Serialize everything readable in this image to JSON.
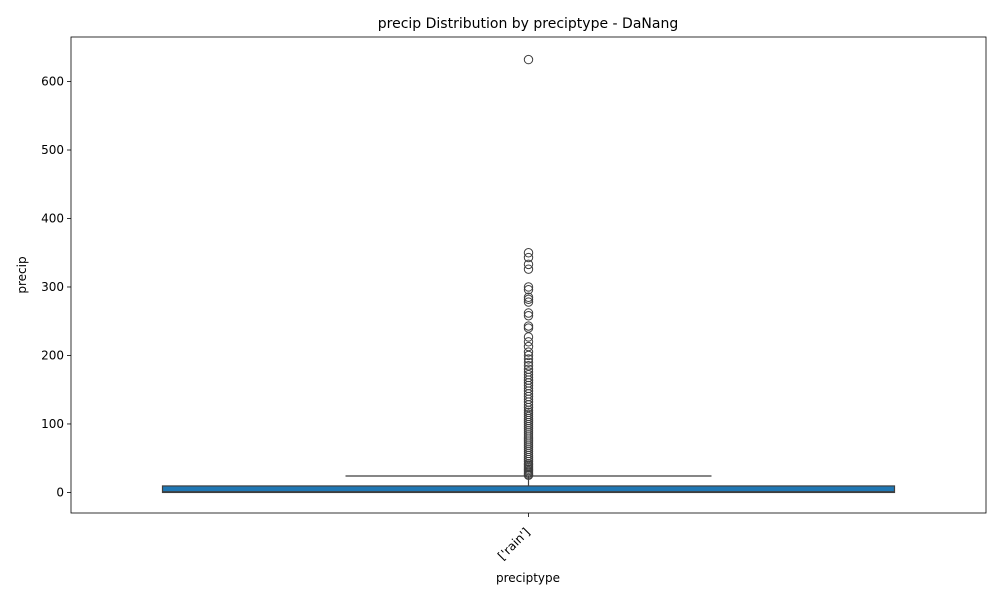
{
  "chart_data": {
    "type": "box",
    "title": "precip Distribution by preciptype - DaNang",
    "xlabel": "preciptype",
    "ylabel": "precip",
    "ylim": [
      -30,
      665
    ],
    "yticks": [
      0,
      100,
      200,
      300,
      400,
      500,
      600
    ],
    "categories": [
      "['rain']"
    ],
    "boxes": [
      {
        "category": "['rain']",
        "q1": 0,
        "median": 1,
        "q3": 9.5,
        "whisker_low": 0,
        "whisker_high": 24,
        "color": "#1f77b4",
        "outliers": [
          632,
          350,
          343,
          333,
          326,
          300,
          296,
          285,
          282,
          278,
          262,
          258,
          243,
          240,
          227,
          220,
          213,
          205,
          200,
          195,
          190,
          185,
          180,
          176,
          172,
          168,
          164,
          160,
          156,
          152,
          148,
          144,
          140,
          136,
          132,
          128,
          124,
          120,
          117,
          114,
          111,
          108,
          105,
          102,
          99,
          96,
          93,
          90,
          87,
          84,
          81,
          78,
          75,
          72,
          69,
          66,
          63,
          60,
          57,
          54,
          51,
          48,
          45,
          42,
          40,
          38,
          36,
          34,
          32,
          30,
          28,
          26,
          25
        ]
      }
    ],
    "grid": false,
    "legend": "none"
  }
}
